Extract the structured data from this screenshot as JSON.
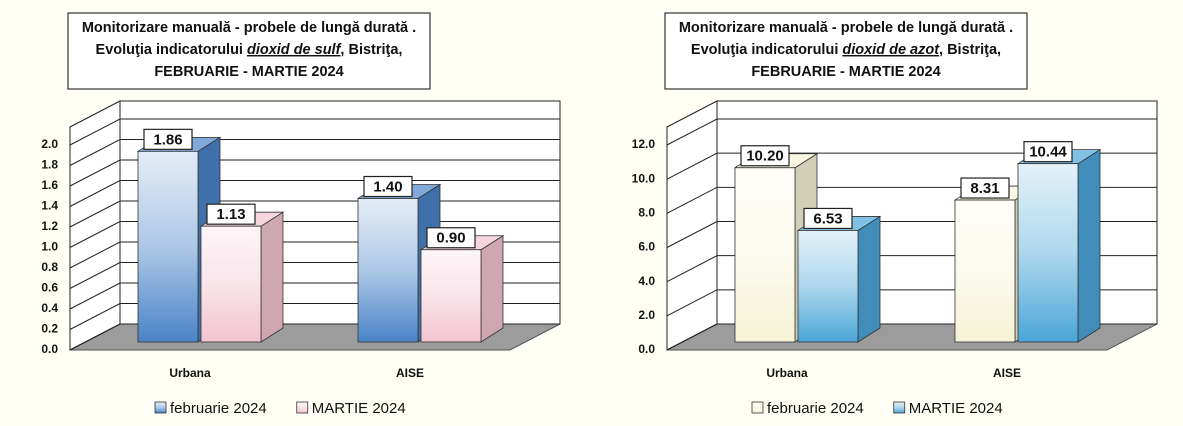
{
  "chart_data": [
    {
      "type": "bar3d",
      "title": {
        "line1": "Monitorizare manuală - probele de lungă durată .",
        "line2_before": "Evoluţia indicatorului",
        "pollutant": "dioxid de sulf",
        "line2_after": ", Bistriţa,",
        "line3": "FEBRUARIE  - MARTIE 2024"
      },
      "categories": [
        "Urbana",
        "AISE"
      ],
      "series": [
        {
          "name": "februarie 2024",
          "color": "#4a84c8",
          "values": [
            1.86,
            1.4
          ],
          "value_labels": [
            "1.86",
            "1.40"
          ]
        },
        {
          "name": "MARTIE 2024",
          "color": "#f2c4d0",
          "values": [
            1.13,
            0.9
          ],
          "value_labels": [
            "1.13",
            "0.90"
          ]
        }
      ],
      "ylim": [
        0,
        2
      ],
      "yticks": [
        {
          "value": 0,
          "label": "0.0"
        },
        {
          "value": 0.2,
          "label": "0.2"
        },
        {
          "value": 0.4,
          "label": "0.4"
        },
        {
          "value": 0.6,
          "label": "0.6"
        },
        {
          "value": 0.8,
          "label": "0.8"
        },
        {
          "value": 1,
          "label": "1.0"
        },
        {
          "value": 1.2,
          "label": "1.2"
        },
        {
          "value": 1.4,
          "label": "1.4"
        },
        {
          "value": 1.6,
          "label": "1.6"
        },
        {
          "value": 1.8,
          "label": "1.8"
        },
        {
          "value": 2,
          "label": "2.0"
        }
      ],
      "grid": true,
      "legend": "bottom"
    },
    {
      "type": "bar3d",
      "title": {
        "line1": "Monitorizare manuală - probele de lungă durată .",
        "line2_before": "Evoluţia indicatorului",
        "pollutant": "dioxid de azot",
        "line2_after": ", Bistriţa,",
        "line3": "FEBRUARIE  - MARTIE 2024"
      },
      "categories": [
        "Urbana",
        "AISE"
      ],
      "series": [
        {
          "name": "februarie 2024",
          "color": "#f6f3d6",
          "values": [
            10.2,
            8.31
          ],
          "value_labels": [
            "10.20",
            "8.31"
          ]
        },
        {
          "name": "MARTIE 2024",
          "color": "#4aa6d8",
          "values": [
            6.53,
            10.44
          ],
          "value_labels": [
            "6.53",
            "10.44"
          ]
        }
      ],
      "ylim": [
        0,
        12
      ],
      "yticks": [
        {
          "value": 0,
          "label": "0.0"
        },
        {
          "value": 2,
          "label": "2.0"
        },
        {
          "value": 4,
          "label": "4.0"
        },
        {
          "value": 6,
          "label": "6.0"
        },
        {
          "value": 8,
          "label": "8.0"
        },
        {
          "value": 10,
          "label": "10.0"
        },
        {
          "value": 12,
          "label": "12.0"
        }
      ],
      "grid": true,
      "legend": "bottom"
    }
  ]
}
